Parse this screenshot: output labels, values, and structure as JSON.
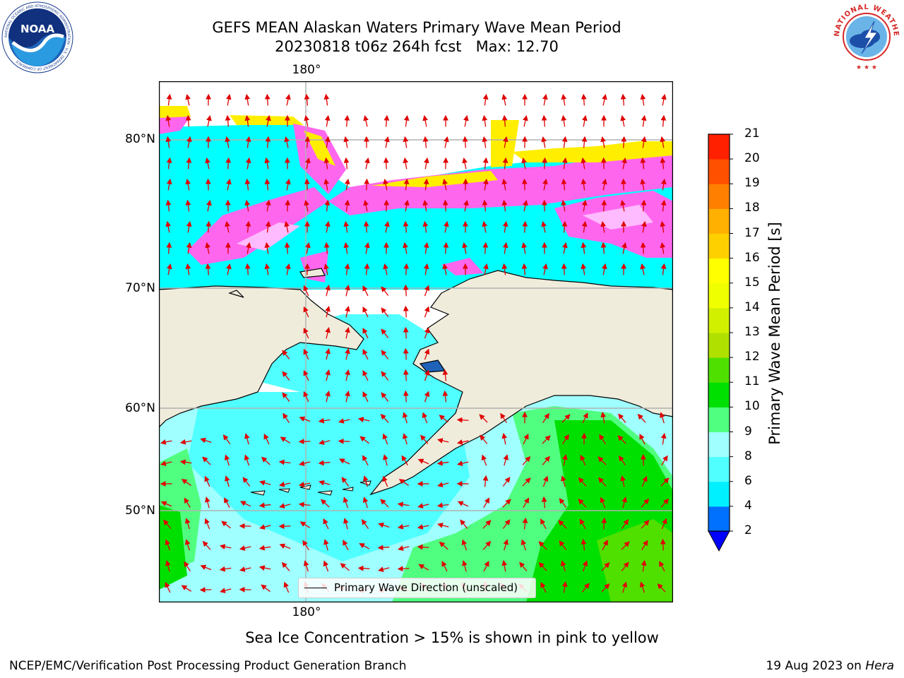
{
  "header": {
    "title_line1": "GEFS MEAN Alaskan Waters Primary Wave Mean Period",
    "title_line2": "20230818 t06z 264h fcst   Max: 12.70"
  },
  "logos": {
    "left": {
      "text": "NOAA",
      "ring_text": "NATIONAL OCEANIC AND ATMOSPHERIC ADMINISTRATION · U.S. DEPARTMENT OF COMMERCE"
    },
    "right": {
      "ring_text": "NATIONAL WEATHER SERVICE"
    }
  },
  "map": {
    "lon_label_top": "180°",
    "lon_label_bottom": "180°",
    "lat_labels": [
      "80°N",
      "70°N",
      "60°N",
      "50°N"
    ],
    "legend_label": "Primary Wave Direction (unscaled)",
    "colors": {
      "land": "#efecdc",
      "coast": "#000000",
      "grid": "#b0b0b0",
      "arrow": "#e00000",
      "ice_pink": "#ff66ee",
      "ice_yellow": "#ffee00"
    }
  },
  "colorbar": {
    "title": "Primary Wave Mean Period [s]",
    "ticks": [
      "2",
      "4",
      "6",
      "8",
      "9",
      "10",
      "11",
      "12",
      "13",
      "14",
      "15",
      "16",
      "17",
      "18",
      "19",
      "20",
      "21"
    ],
    "colors": [
      "#0070ff",
      "#00f0ff",
      "#50ffff",
      "#a0ffff",
      "#50ff80",
      "#00e000",
      "#50e000",
      "#b0e000",
      "#d0f000",
      "#f0ff00",
      "#ffff00",
      "#ffd000",
      "#ffb000",
      "#ff8000",
      "#ff5000",
      "#ff2000"
    ],
    "extend_color": "#0000ff"
  },
  "footer": {
    "note": "Sea Ice Concentration > 15% is shown in pink to yellow",
    "credit_left": "NCEP/EMC/Verification Post Processing Product Generation Branch",
    "credit_right_prefix": "19 Aug 2023 on ",
    "credit_right_host": "Hera"
  }
}
